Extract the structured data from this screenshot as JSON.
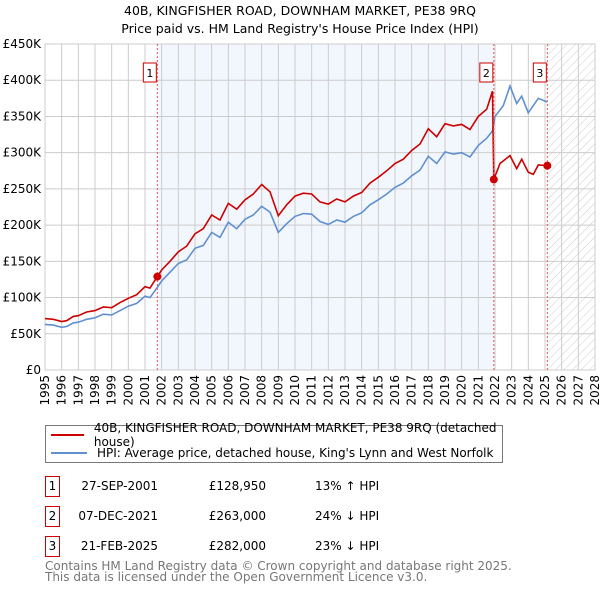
{
  "chart_data": {
    "type": "line",
    "title": "40B, KINGFISHER ROAD, DOWNHAM MARKET, PE38 9RQ",
    "subtitle": "Price paid vs. HM Land Registry's House Price Index (HPI)",
    "xlim": [
      1995,
      2028
    ],
    "ylim": [
      0,
      450000
    ],
    "x_ticks": [
      "1995",
      "1996",
      "1997",
      "1998",
      "1999",
      "2000",
      "2001",
      "2002",
      "2003",
      "2004",
      "2005",
      "2006",
      "2007",
      "2008",
      "2009",
      "2010",
      "2011",
      "2012",
      "2013",
      "2014",
      "2015",
      "2016",
      "2017",
      "2018",
      "2019",
      "2020",
      "2021",
      "2022",
      "2023",
      "2024",
      "2025",
      "2026",
      "2027",
      "2028"
    ],
    "y_ticks": [
      {
        "v": 0,
        "label": "£0"
      },
      {
        "v": 50000,
        "label": "£50K"
      },
      {
        "v": 100000,
        "label": "£100K"
      },
      {
        "v": 150000,
        "label": "£150K"
      },
      {
        "v": 200000,
        "label": "£200K"
      },
      {
        "v": 250000,
        "label": "£250K"
      },
      {
        "v": 300000,
        "label": "£300K"
      },
      {
        "v": 350000,
        "label": "£350K"
      },
      {
        "v": 400000,
        "label": "£400K"
      },
      {
        "v": 450000,
        "label": "£450K"
      }
    ],
    "grid": true,
    "series": [
      {
        "name": "40B, KINGFISHER ROAD, DOWNHAM MARKET, PE38 9RQ (detached house)",
        "color": "#cc0000",
        "x": [
          1995,
          1995.5,
          1996,
          1996.3,
          1996.7,
          1997,
          1997.5,
          1998,
          1998.5,
          1999,
          1999.5,
          2000,
          2000.5,
          2001,
          2001.3,
          2001.74,
          2002,
          2002.5,
          2003,
          2003.5,
          2004,
          2004.5,
          2005,
          2005.5,
          2006,
          2006.5,
          2007,
          2007.5,
          2008,
          2008.5,
          2009,
          2009.5,
          2010,
          2010.5,
          2011,
          2011.5,
          2012,
          2012.5,
          2013,
          2013.5,
          2014,
          2014.5,
          2015,
          2015.5,
          2016,
          2016.5,
          2017,
          2017.5,
          2018,
          2018.5,
          2019,
          2019.5,
          2020,
          2020.5,
          2021,
          2021.5,
          2021.85,
          2021.93,
          2022.3,
          2022.9,
          2023.3,
          2023.6,
          2024,
          2024.3,
          2024.6,
          2025.14
        ],
        "y": [
          71000,
          70000,
          67000,
          68000,
          74000,
          75000,
          80000,
          82000,
          87000,
          86000,
          93000,
          99000,
          104000,
          115000,
          113000,
          128950,
          138000,
          150000,
          163000,
          171000,
          188000,
          195000,
          214000,
          207000,
          230000,
          222000,
          235000,
          243000,
          256000,
          246000,
          213000,
          228000,
          240000,
          244000,
          243000,
          232000,
          229000,
          236000,
          232000,
          240000,
          245000,
          258000,
          266000,
          275000,
          285000,
          291000,
          303000,
          312000,
          333000,
          322000,
          340000,
          337000,
          339000,
          332000,
          350000,
          360000,
          385000,
          263000,
          285000,
          296000,
          278000,
          291000,
          273000,
          270000,
          283000,
          282000
        ]
      },
      {
        "name": "HPI: Average price, detached house, King's Lynn and West Norfolk",
        "color": "#6090d0",
        "x": [
          1995,
          1995.5,
          1996,
          1996.3,
          1996.7,
          1997,
          1997.5,
          1998,
          1998.5,
          1999,
          1999.5,
          2000,
          2000.5,
          2001,
          2001.3,
          2001.74,
          2002,
          2002.5,
          2003,
          2003.5,
          2004,
          2004.5,
          2005,
          2005.5,
          2006,
          2006.5,
          2007,
          2007.5,
          2008,
          2008.5,
          2009,
          2009.5,
          2010,
          2010.5,
          2011,
          2011.5,
          2012,
          2012.5,
          2013,
          2013.5,
          2014,
          2014.5,
          2015,
          2015.5,
          2016,
          2016.5,
          2017,
          2017.5,
          2018,
          2018.5,
          2019,
          2019.5,
          2020,
          2020.5,
          2021,
          2021.5,
          2021.85,
          2022,
          2022.5,
          2022.9,
          2023.3,
          2023.6,
          2024,
          2024.3,
          2024.6,
          2025.14
        ],
        "y": [
          63000,
          62000,
          59000,
          60000,
          65000,
          66000,
          70000,
          72000,
          77000,
          76000,
          82000,
          88000,
          92000,
          102000,
          100000,
          114000,
          123000,
          135000,
          147000,
          152000,
          168000,
          172000,
          190000,
          183000,
          204000,
          195000,
          208000,
          214000,
          226000,
          218000,
          190000,
          202000,
          212000,
          216000,
          215000,
          205000,
          201000,
          207000,
          204000,
          212000,
          217000,
          228000,
          235000,
          243000,
          252000,
          258000,
          268000,
          276000,
          295000,
          285000,
          301000,
          298000,
          300000,
          294000,
          310000,
          320000,
          330000,
          350000,
          365000,
          392000,
          368000,
          378000,
          355000,
          365000,
          375000,
          370000
        ]
      }
    ],
    "sales": [
      {
        "id": "1",
        "x": 2001.74,
        "y": 128950
      },
      {
        "id": "2",
        "x": 2021.93,
        "y": 263000
      },
      {
        "id": "3",
        "x": 2025.14,
        "y": 282000
      }
    ]
  },
  "legend": {
    "red": "40B, KINGFISHER ROAD, DOWNHAM MARKET, PE38 9RQ (detached house)",
    "blue": "HPI: Average price, detached house, King's Lynn and West Norfolk"
  },
  "transactions": [
    {
      "num": "1",
      "date": "27-SEP-2001",
      "price": "£128,950",
      "hpi": "13% ↑ HPI"
    },
    {
      "num": "2",
      "date": "07-DEC-2021",
      "price": "£263,000",
      "hpi": "24% ↓ HPI"
    },
    {
      "num": "3",
      "date": "21-FEB-2025",
      "price": "£282,000",
      "hpi": "23% ↓ HPI"
    }
  ],
  "footer": [
    "Contains HM Land Registry data © Crown copyright and database right 2025.",
    "This data is licensed under the Open Government Licence v3.0."
  ]
}
